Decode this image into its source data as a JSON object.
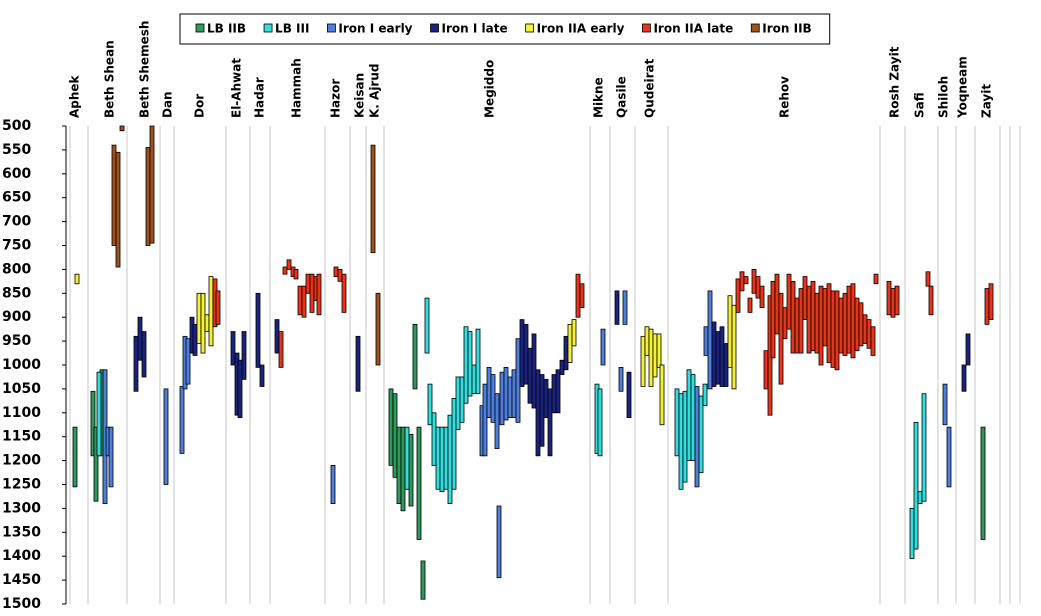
{
  "chart_data": {
    "type": "range-bar",
    "ylim": [
      500,
      1500
    ],
    "y_inverted": true,
    "yticks": [
      500,
      550,
      600,
      650,
      700,
      750,
      800,
      850,
      900,
      950,
      1000,
      1050,
      1100,
      1150,
      1200,
      1250,
      1300,
      1350,
      1400,
      1450,
      1500
    ],
    "xlim": [
      0,
      964
    ],
    "xticks": [
      4,
      22,
      61,
      94,
      108,
      160,
      184,
      204,
      259,
      284,
      300,
      318,
      524,
      544,
      569,
      602,
      814,
      839,
      872,
      890,
      909,
      934,
      944,
      954
    ],
    "sites": {
      "labels": [
        "Aphek",
        "Beth Shean",
        "Beth Shemesh",
        "Dan",
        "Dor",
        "El-Ahwat",
        "Hadar",
        "Hammah",
        "Hazor",
        "Keisan",
        "K. Ajrud",
        "Megiddo",
        "Mikne",
        "Qasile",
        "Qudeirat",
        "Rehov",
        "Rosh Zayit",
        "Safi",
        "Shiloh",
        "Yoqneam",
        "Zayit"
      ],
      "x": [
        9,
        44,
        79,
        102,
        134,
        171,
        194,
        231,
        270,
        294,
        309,
        424,
        533,
        556,
        584,
        719,
        829,
        854,
        878,
        897,
        921
      ]
    },
    "series": [
      {
        "name": "LB IIB",
        "color": "#2e9a5a",
        "x": [
          9,
          27,
          30,
          36,
          325,
          329,
          333,
          337,
          345,
          349,
          353,
          357,
          917
        ],
        "low": [
          1130,
          1055,
          1130,
          1010,
          1050,
          1060,
          1130,
          1130,
          1145,
          915,
          1130,
          1410,
          1130
        ],
        "high": [
          1255,
          1190,
          1285,
          1190,
          1210,
          1235,
          1290,
          1305,
          1295,
          1050,
          1365,
          1490,
          1365
        ]
      },
      {
        "name": "LB III",
        "color": "#33dddd",
        "x": [
          33,
          341,
          361,
          364,
          368,
          372,
          376,
          380,
          384,
          388,
          392,
          396,
          400,
          404,
          408,
          412,
          531,
          534,
          611,
          615,
          619,
          623,
          627,
          635,
          639,
          846,
          850,
          854,
          858
        ],
        "low": [
          1015,
          1130,
          860,
          1040,
          1100,
          1130,
          1130,
          1130,
          1105,
          1070,
          1025,
          1025,
          920,
          930,
          1000,
          925,
          1040,
          1050,
          1050,
          1060,
          1055,
          1010,
          1020,
          1065,
          1040,
          1300,
          1120,
          1265,
          1060
        ],
        "high": [
          1190,
          1260,
          975,
          1125,
          1210,
          1260,
          1265,
          1260,
          1290,
          1260,
          1135,
          1120,
          1080,
          1065,
          1060,
          1060,
          1185,
          1190,
          1190,
          1260,
          1245,
          1200,
          1200,
          1225,
          1085,
          1405,
          1385,
          1290,
          1285
        ]
      },
      {
        "name": "Iron I early",
        "color": "#4f7fdc",
        "x": [
          39,
          42,
          45,
          100,
          116,
          119,
          122,
          267,
          416,
          419,
          423,
          427,
          431,
          433,
          436,
          440,
          444,
          448,
          452,
          537,
          555,
          559,
          631,
          640,
          644,
          879,
          883
        ],
        "low": [
          1010,
          1130,
          1130,
          1050,
          1045,
          940,
          945,
          1210,
          1085,
          1040,
          1005,
          1020,
          1060,
          1295,
          1015,
          1005,
          1025,
          1010,
          945,
          925,
          1005,
          845,
          1045,
          920,
          845,
          1040,
          1130
        ],
        "high": [
          1290,
          1190,
          1255,
          1250,
          1185,
          1050,
          1040,
          1290,
          1190,
          1190,
          1110,
          1120,
          1175,
          1445,
          1125,
          1115,
          1110,
          1110,
          1120,
          1000,
          1055,
          915,
          1255,
          980,
          1050,
          1125,
          1255
        ]
      },
      {
        "name": "Iron I late",
        "color": "#1a237e",
        "x": [
          70,
          74,
          78,
          126,
          129,
          167,
          171,
          174,
          178,
          192,
          196,
          211,
          292,
          456,
          460,
          464,
          468,
          472,
          476,
          480,
          484,
          488,
          492,
          496,
          500,
          551,
          563,
          648,
          652,
          656,
          660,
          898,
          902
        ],
        "low": [
          940,
          900,
          930,
          900,
          915,
          930,
          975,
          990,
          930,
          850,
          1000,
          905,
          940,
          905,
          915,
          965,
          935,
          1010,
          1020,
          1030,
          1050,
          1020,
          1010,
          990,
          940,
          845,
          1015,
          910,
          930,
          920,
          955,
          1000,
          935
        ],
        "high": [
          1055,
          990,
          1025,
          975,
          980,
          1000,
          1105,
          1110,
          1030,
          1005,
          1045,
          975,
          1055,
          1045,
          1040,
          1080,
          1090,
          1190,
          1170,
          1110,
          1190,
          1100,
          1100,
          1020,
          1010,
          915,
          1110,
          1045,
          1040,
          1045,
          1045,
          1055,
          1000
        ]
      },
      {
        "name": "Iron IIA early",
        "color": "#f5f03a",
        "x": [
          11,
          133,
          137,
          141,
          145,
          504,
          508,
          577,
          581,
          585,
          589,
          593,
          596,
          664,
          668
        ],
        "low": [
          810,
          850,
          850,
          895,
          815,
          915,
          905,
          940,
          920,
          925,
          935,
          935,
          1000,
          855,
          875
        ],
        "high": [
          830,
          955,
          975,
          930,
          960,
          995,
          960,
          1045,
          980,
          1045,
          1025,
          1005,
          1125,
          1005,
          1050
        ]
      },
      {
        "name": "Iron IIA late",
        "color": "#e8341c",
        "x": [
          149,
          152,
          215,
          219,
          223,
          227,
          230,
          234,
          238,
          242,
          246,
          250,
          253,
          270,
          274,
          278,
          512,
          516,
          672,
          676,
          680,
          684,
          688,
          692,
          696,
          700,
          704,
          707,
          711,
          715,
          719,
          723,
          727,
          731,
          735,
          739,
          743,
          747,
          751,
          755,
          759,
          763,
          767,
          771,
          775,
          779,
          783,
          787,
          791,
          795,
          799,
          803,
          807,
          810,
          823,
          827,
          831,
          862,
          865,
          921,
          925
        ],
        "low": [
          820,
          845,
          930,
          795,
          780,
          795,
          800,
          835,
          835,
          810,
          810,
          815,
          810,
          795,
          800,
          810,
          810,
          830,
          820,
          805,
          815,
          860,
          800,
          815,
          835,
          970,
          855,
          825,
          810,
          850,
          880,
          810,
          825,
          860,
          840,
          815,
          835,
          825,
          850,
          835,
          840,
          830,
          845,
          845,
          860,
          850,
          835,
          830,
          860,
          870,
          895,
          905,
          920,
          810,
          825,
          840,
          835,
          805,
          835,
          840,
          830
        ],
        "high": [
          920,
          915,
          1005,
          810,
          800,
          815,
          820,
          895,
          900,
          850,
          890,
          865,
          895,
          815,
          825,
          890,
          900,
          880,
          890,
          845,
          830,
          890,
          850,
          860,
          880,
          1050,
          1105,
          985,
          935,
          1040,
          945,
          925,
          975,
          975,
          975,
          905,
          975,
          970,
          975,
          1000,
          960,
          995,
          1005,
          1010,
          975,
          980,
          975,
          985,
          970,
          960,
          955,
          965,
          980,
          830,
          895,
          900,
          895,
          835,
          895,
          915,
          905
        ]
      },
      {
        "name": "Iron IIB",
        "color": "#a0521c",
        "x": [
          48,
          52,
          56,
          82,
          86,
          307,
          312
        ],
        "low": [
          540,
          555,
          500,
          545,
          500,
          540,
          850
        ],
        "high": [
          750,
          795,
          510,
          750,
          745,
          765,
          1000
        ]
      }
    ]
  }
}
